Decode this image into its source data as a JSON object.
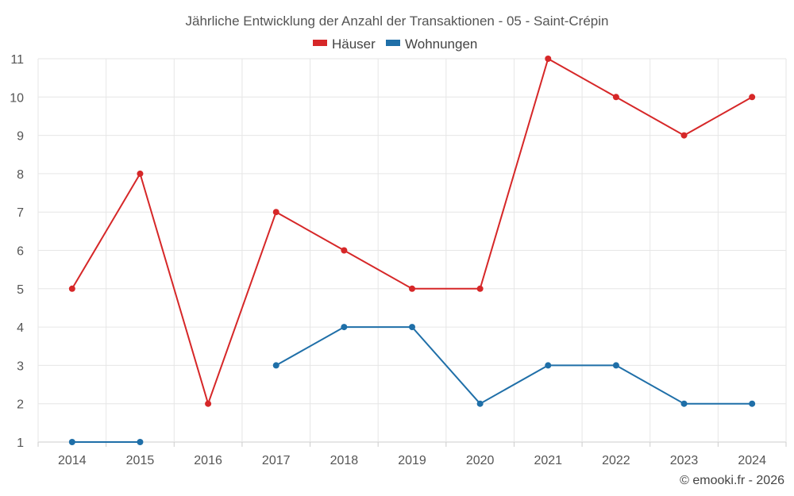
{
  "chart_data": {
    "type": "line",
    "title": "Jährliche Entwicklung der Anzahl der Transaktionen - 05 - Saint-Crépin",
    "xlabel": "",
    "ylabel": "",
    "categories": [
      "2014",
      "2015",
      "2016",
      "2017",
      "2018",
      "2019",
      "2020",
      "2021",
      "2022",
      "2023",
      "2024"
    ],
    "ylim": [
      1,
      11
    ],
    "yticks": [
      1,
      2,
      3,
      4,
      5,
      6,
      7,
      8,
      9,
      10,
      11
    ],
    "grid": true,
    "legend_position": "top-center",
    "series": [
      {
        "name": "Häuser",
        "color": "#d62728",
        "values": [
          5,
          8,
          2,
          7,
          6,
          5,
          5,
          11,
          10,
          9,
          10
        ]
      },
      {
        "name": "Wohnungen",
        "color": "#1f6fa8",
        "values": [
          1,
          1,
          null,
          3,
          4,
          4,
          2,
          3,
          3,
          2,
          2
        ]
      }
    ]
  },
  "credit": "© emooki.fr - 2026"
}
